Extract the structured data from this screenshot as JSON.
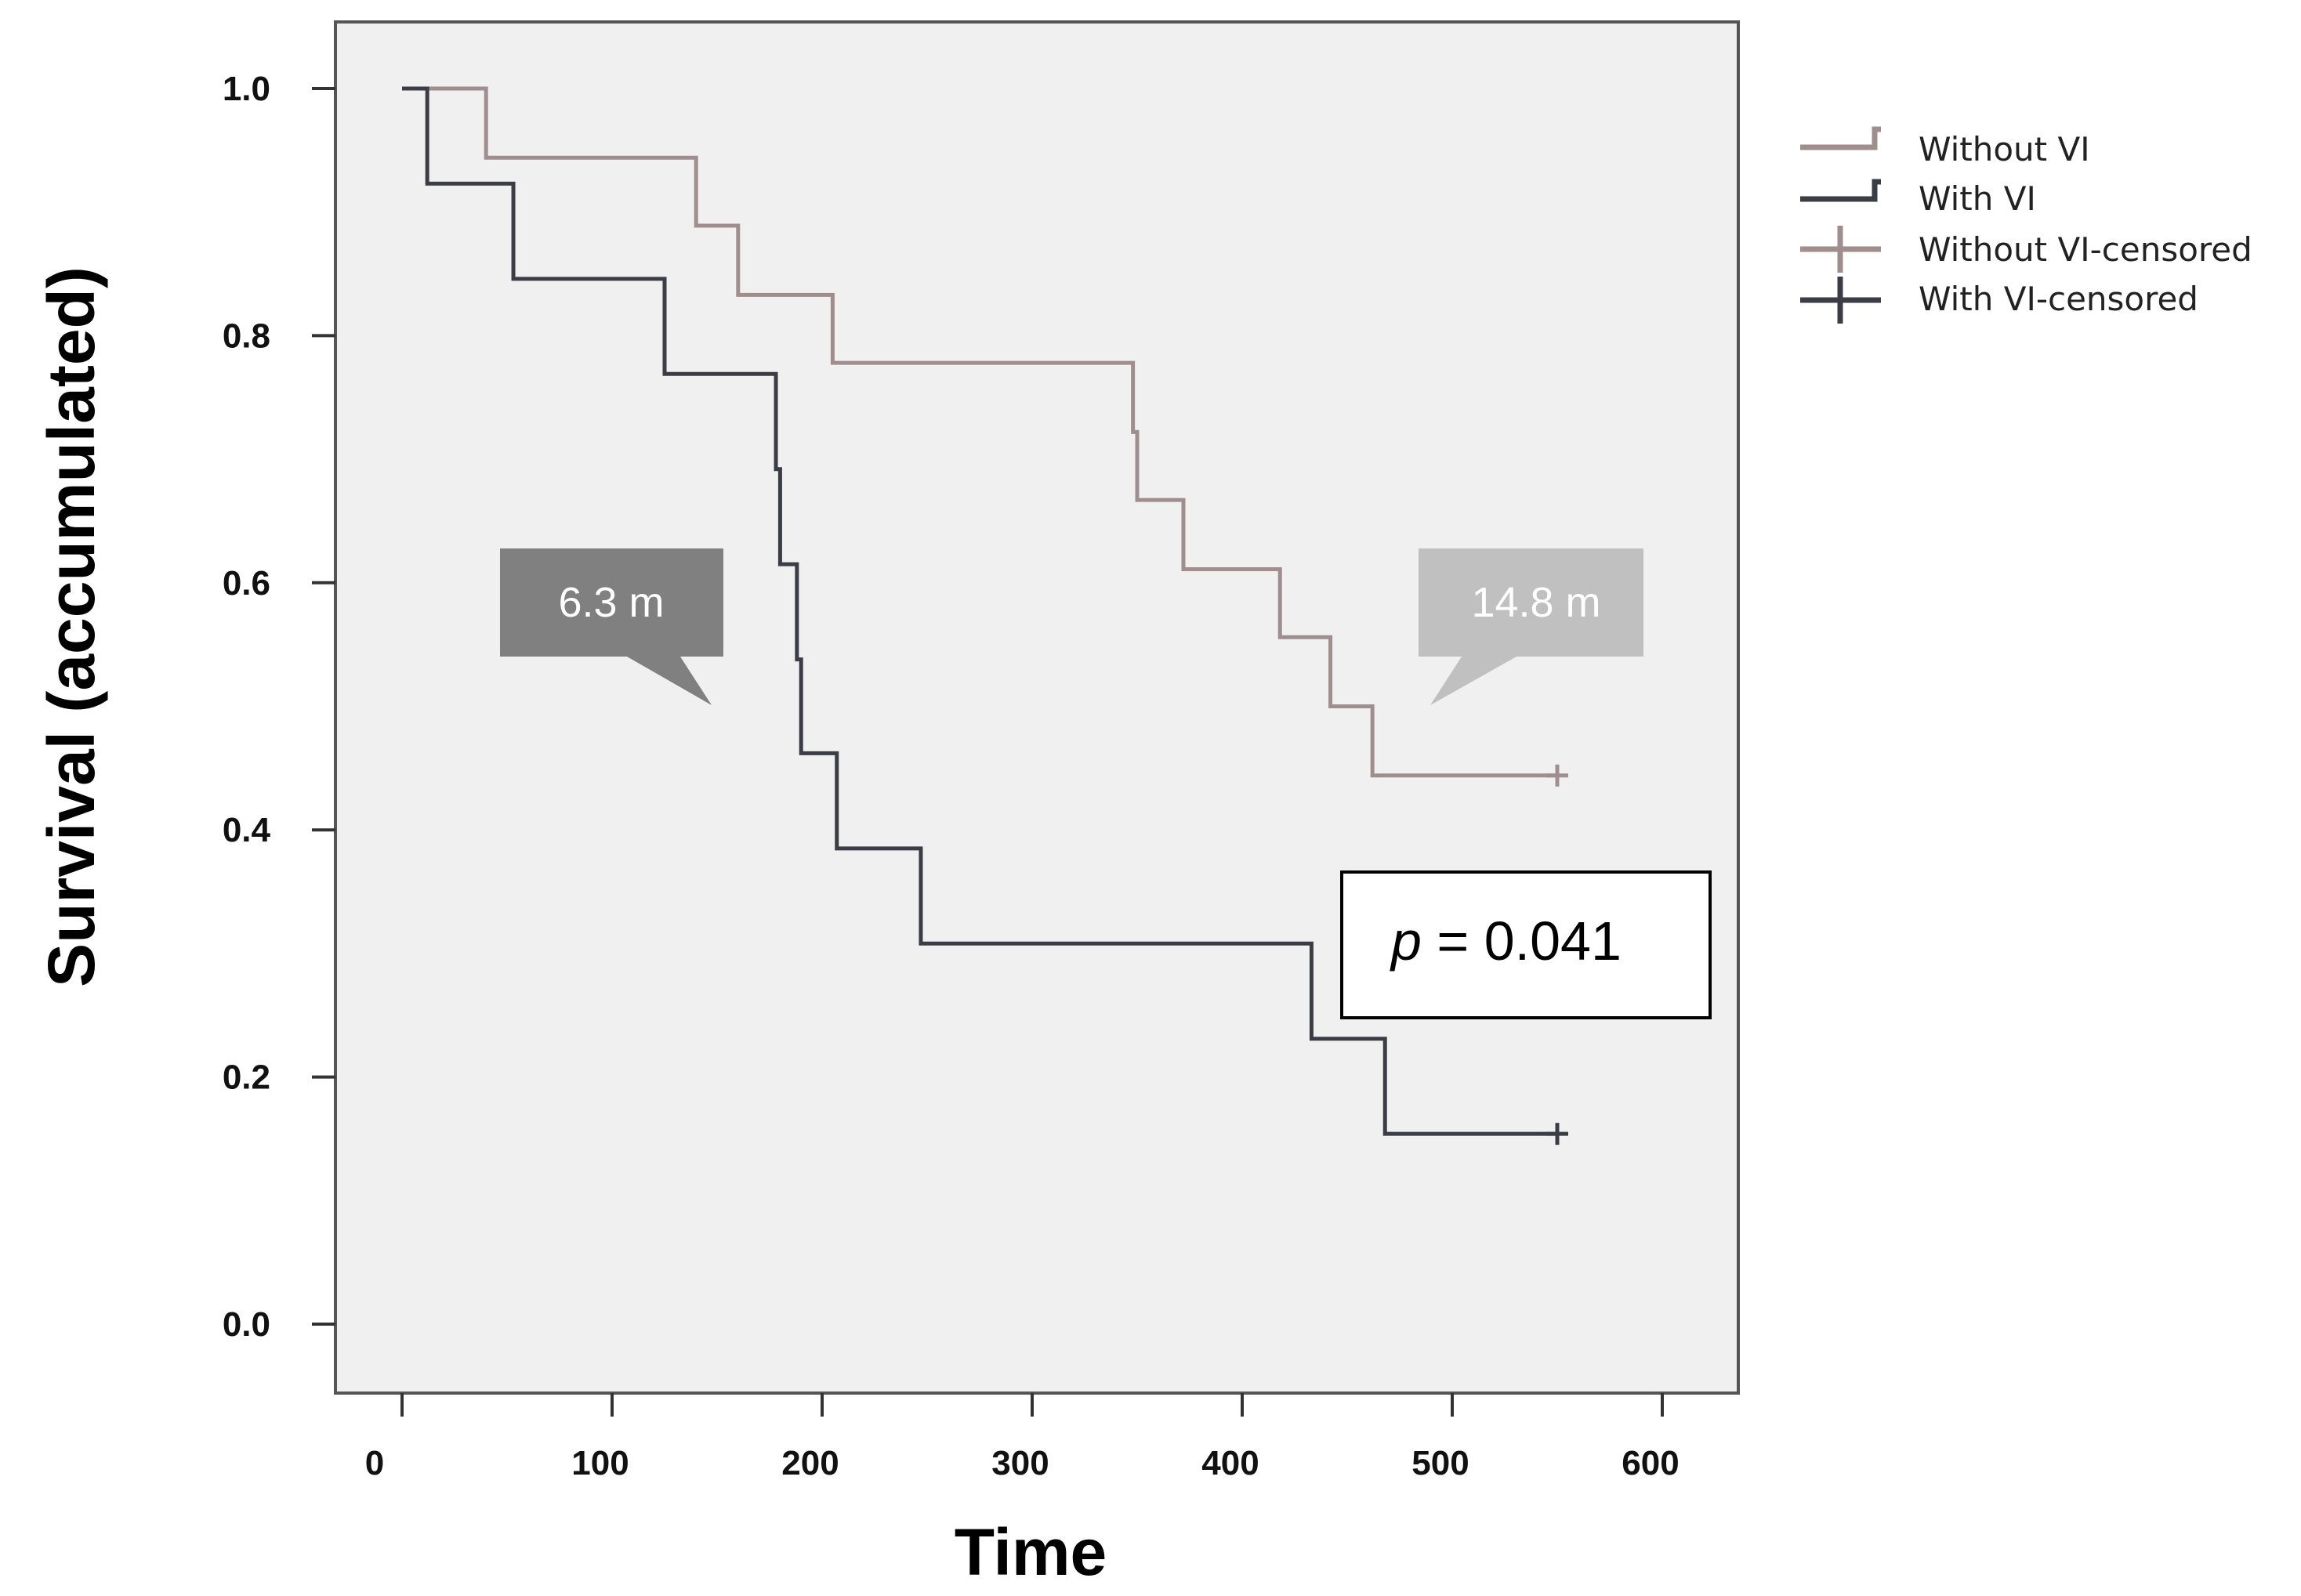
{
  "chart_data": {
    "type": "line",
    "subtype": "kaplan-meier-step",
    "title": "",
    "xlabel": "Time",
    "ylabel": "Survival (accumulated)",
    "xlim": [
      -30,
      630
    ],
    "ylim": [
      -0.05,
      1.05
    ],
    "xticks": [
      0,
      100,
      200,
      300,
      400,
      500,
      600
    ],
    "xtick_labels": [
      "0",
      "100",
      "200",
      "300",
      "400",
      "500",
      "600"
    ],
    "yticks": [
      0.0,
      0.2,
      0.4,
      0.6,
      0.8,
      1.0
    ],
    "ytick_labels": [
      "0.0",
      "0.2",
      "0.4",
      "0.6",
      "0.8",
      "1.0"
    ],
    "grid": false,
    "legend_position": "right",
    "series": [
      {
        "name": "Without VI",
        "color": "#a08e8e",
        "steps": [
          [
            0,
            1.0
          ],
          [
            40,
            0.944
          ],
          [
            140,
            0.889
          ],
          [
            160,
            0.833
          ],
          [
            205,
            0.778
          ],
          [
            348,
            0.722
          ],
          [
            350,
            0.667
          ],
          [
            372,
            0.611
          ],
          [
            418,
            0.556
          ],
          [
            442,
            0.5
          ],
          [
            462,
            0.444
          ],
          [
            550,
            0.444
          ]
        ],
        "censored": [
          [
            550,
            0.444
          ]
        ]
      },
      {
        "name": "With VI",
        "color": "#3a3d46",
        "steps": [
          [
            0,
            1.0
          ],
          [
            12,
            0.923
          ],
          [
            53,
            0.846
          ],
          [
            125,
            0.769
          ],
          [
            178,
            0.692
          ],
          [
            180,
            0.615
          ],
          [
            188,
            0.538
          ],
          [
            190,
            0.462
          ],
          [
            207,
            0.385
          ],
          [
            247,
            0.308
          ],
          [
            433,
            0.231
          ],
          [
            468,
            0.154
          ],
          [
            550,
            0.154
          ]
        ],
        "censored": [
          [
            550,
            0.154
          ]
        ]
      }
    ],
    "legend": [
      "Without VI",
      "With VI",
      "Without VI-censored",
      "With VI-censored"
    ],
    "annotations": [
      {
        "text": "6.3 m",
        "style": "callout-dark",
        "color": "#808080",
        "anchor_x": 183,
        "anchor_y": 0.5
      },
      {
        "text": "14.8 m",
        "style": "callout-light",
        "color": "#c0c0c0",
        "anchor_x": 487,
        "anchor_y": 0.5
      },
      {
        "text": "p = 0.041",
        "style": "boxed"
      }
    ],
    "p_value": {
      "italic": "p",
      "rest": " = 0.041"
    },
    "plot_background": "#f0f0f0"
  }
}
